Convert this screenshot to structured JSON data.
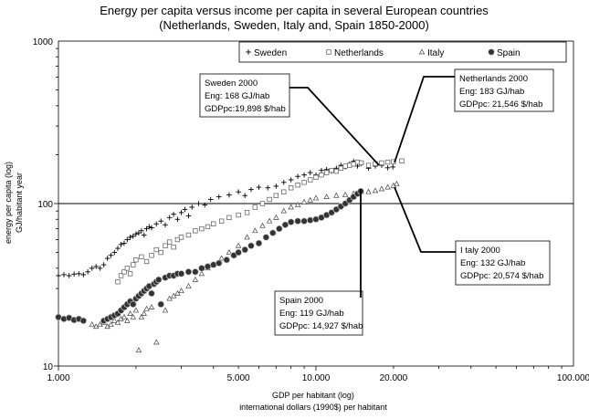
{
  "chart_data": {
    "type": "scatter",
    "title": "Energy per capita versus income per capita in several European countries",
    "subtitle": "(Netherlands, Sweden, Italy and, Spain 1850-2000)",
    "xlabel": "GDP per habitant (log)",
    "xlabel2": "international dollars (1990$) per habitant",
    "ylabel": "energy per capita (log)",
    "ylabel2": "GJ/habitant year",
    "x_scale": "log",
    "y_scale": "log",
    "xlim": [
      1000,
      100000
    ],
    "ylim": [
      10,
      1000
    ],
    "x_ticks": [
      {
        "value": 1000,
        "label": "1.000"
      },
      {
        "value": 5000,
        "label": "5.000"
      },
      {
        "value": 10000,
        "label": "10.000"
      },
      {
        "value": 20000,
        "label": "20.000"
      },
      {
        "value": 100000,
        "label": "100.000"
      }
    ],
    "y_ticks": [
      {
        "value": 10,
        "label": "10"
      },
      {
        "value": 100,
        "label": "100"
      },
      {
        "value": 1000,
        "label": "1000"
      }
    ],
    "reference_line_y": 100,
    "legend_position": "top-right",
    "series": [
      {
        "name": "Sweden",
        "marker": "plus",
        "color": "#000000",
        "points": [
          [
            1000,
            36
          ],
          [
            1050,
            36.5
          ],
          [
            1100,
            36
          ],
          [
            1150,
            36.8
          ],
          [
            1200,
            37
          ],
          [
            1250,
            36.5
          ],
          [
            1300,
            38
          ],
          [
            1350,
            40
          ],
          [
            1400,
            41
          ],
          [
            1450,
            40
          ],
          [
            1500,
            42
          ],
          [
            1550,
            46
          ],
          [
            1600,
            48
          ],
          [
            1650,
            50
          ],
          [
            1700,
            53
          ],
          [
            1750,
            56
          ],
          [
            1800,
            57
          ],
          [
            1850,
            60
          ],
          [
            1900,
            62
          ],
          [
            1950,
            63
          ],
          [
            2000,
            65
          ],
          [
            2050,
            66
          ],
          [
            2100,
            68
          ],
          [
            2150,
            64
          ],
          [
            2200,
            70
          ],
          [
            2250,
            72
          ],
          [
            2300,
            71
          ],
          [
            2400,
            75
          ],
          [
            2500,
            78
          ],
          [
            2600,
            74
          ],
          [
            2700,
            82
          ],
          [
            2800,
            86
          ],
          [
            2900,
            80
          ],
          [
            3000,
            88
          ],
          [
            3100,
            92
          ],
          [
            3200,
            84
          ],
          [
            3300,
            95
          ],
          [
            3500,
            100
          ],
          [
            3700,
            98
          ],
          [
            3900,
            106
          ],
          [
            4200,
            110
          ],
          [
            4600,
            113
          ],
          [
            5000,
            118
          ],
          [
            5300,
            112
          ],
          [
            5600,
            122
          ],
          [
            6000,
            126
          ],
          [
            6500,
            125
          ],
          [
            7000,
            128
          ],
          [
            7500,
            135
          ],
          [
            8000,
            140
          ],
          [
            8500,
            147
          ],
          [
            9000,
            150
          ],
          [
            9500,
            155
          ],
          [
            10000,
            150
          ],
          [
            10500,
            160
          ],
          [
            11000,
            162
          ],
          [
            11500,
            158
          ],
          [
            12000,
            165
          ],
          [
            12500,
            172
          ],
          [
            13000,
            168
          ],
          [
            13500,
            175
          ],
          [
            14000,
            182
          ],
          [
            14500,
            170
          ],
          [
            15000,
            176
          ],
          [
            16000,
            165
          ],
          [
            17000,
            170
          ],
          [
            18000,
            172
          ],
          [
            19000,
            166
          ],
          [
            19898,
            168
          ]
        ]
      },
      {
        "name": "Netherlands",
        "marker": "square",
        "color": "#000000",
        "points": [
          [
            1700,
            33
          ],
          [
            1750,
            36
          ],
          [
            1800,
            38
          ],
          [
            1850,
            40
          ],
          [
            1900,
            37
          ],
          [
            1950,
            42
          ],
          [
            2000,
            45
          ],
          [
            2100,
            47
          ],
          [
            2200,
            44
          ],
          [
            2300,
            48
          ],
          [
            2400,
            52
          ],
          [
            2500,
            50
          ],
          [
            2600,
            55
          ],
          [
            2700,
            58
          ],
          [
            2800,
            54
          ],
          [
            2900,
            60
          ],
          [
            3000,
            62
          ],
          [
            3200,
            64
          ],
          [
            3400,
            68
          ],
          [
            3600,
            70
          ],
          [
            3800,
            72
          ],
          [
            4000,
            75
          ],
          [
            4300,
            78
          ],
          [
            4600,
            82
          ],
          [
            5000,
            85
          ],
          [
            5400,
            88
          ],
          [
            5800,
            95
          ],
          [
            6200,
            100
          ],
          [
            6600,
            106
          ],
          [
            7000,
            112
          ],
          [
            7500,
            118
          ],
          [
            8000,
            125
          ],
          [
            8500,
            130
          ],
          [
            9000,
            135
          ],
          [
            9500,
            140
          ],
          [
            10000,
            145
          ],
          [
            10500,
            150
          ],
          [
            11000,
            155
          ],
          [
            11500,
            160
          ],
          [
            12000,
            158
          ],
          [
            12500,
            165
          ],
          [
            13000,
            170
          ],
          [
            13500,
            172
          ],
          [
            14000,
            175
          ],
          [
            14500,
            180
          ],
          [
            15000,
            178
          ],
          [
            16000,
            172
          ],
          [
            17000,
            176
          ],
          [
            18000,
            178
          ],
          [
            19000,
            180
          ],
          [
            20000,
            181
          ],
          [
            21546,
            183
          ]
        ]
      },
      {
        "name": "Italy",
        "marker": "triangle",
        "color": "#000000",
        "points": [
          [
            1350,
            18
          ],
          [
            1400,
            17.5
          ],
          [
            1450,
            18
          ],
          [
            1500,
            18.5
          ],
          [
            1550,
            17.5
          ],
          [
            1600,
            18
          ],
          [
            1650,
            19
          ],
          [
            1700,
            18.5
          ],
          [
            1750,
            19.5
          ],
          [
            1800,
            20
          ],
          [
            1850,
            19
          ],
          [
            1900,
            21
          ],
          [
            1950,
            20
          ],
          [
            2000,
            22
          ],
          [
            2050,
            12.5
          ],
          [
            2100,
            20
          ],
          [
            2150,
            21
          ],
          [
            2200,
            22.5
          ],
          [
            2300,
            23
          ],
          [
            2400,
            14
          ],
          [
            2500,
            24
          ],
          [
            2600,
            22
          ],
          [
            2700,
            26
          ],
          [
            2800,
            27
          ],
          [
            2900,
            28
          ],
          [
            3000,
            29
          ],
          [
            3200,
            31
          ],
          [
            3400,
            34
          ],
          [
            3600,
            37
          ],
          [
            3800,
            40
          ],
          [
            4000,
            42
          ],
          [
            4300,
            46
          ],
          [
            4600,
            50
          ],
          [
            5000,
            55
          ],
          [
            5400,
            62
          ],
          [
            5800,
            68
          ],
          [
            6200,
            73
          ],
          [
            6600,
            78
          ],
          [
            7000,
            82
          ],
          [
            7500,
            90
          ],
          [
            8000,
            95
          ],
          [
            8500,
            98
          ],
          [
            9000,
            102
          ],
          [
            9500,
            105
          ],
          [
            10000,
            108
          ],
          [
            11000,
            110
          ],
          [
            12000,
            112
          ],
          [
            13000,
            113
          ],
          [
            14000,
            115
          ],
          [
            15000,
            118
          ],
          [
            16000,
            118
          ],
          [
            17000,
            120
          ],
          [
            18000,
            123
          ],
          [
            19000,
            126
          ],
          [
            20000,
            129
          ],
          [
            20574,
            132
          ]
        ]
      },
      {
        "name": "Spain",
        "marker": "circle",
        "color": "#000000",
        "points": [
          [
            1000,
            20
          ],
          [
            1050,
            19.5
          ],
          [
            1100,
            19.8
          ],
          [
            1150,
            19.2
          ],
          [
            1200,
            19.5
          ],
          [
            1250,
            19
          ],
          [
            1500,
            19
          ],
          [
            1550,
            19.5
          ],
          [
            1600,
            20
          ],
          [
            1650,
            20.5
          ],
          [
            1700,
            21
          ],
          [
            1750,
            22
          ],
          [
            1800,
            23
          ],
          [
            1850,
            24
          ],
          [
            1900,
            25
          ],
          [
            1950,
            24
          ],
          [
            2000,
            26
          ],
          [
            2050,
            27
          ],
          [
            2100,
            28
          ],
          [
            2150,
            29
          ],
          [
            2200,
            30
          ],
          [
            2250,
            31
          ],
          [
            2300,
            28
          ],
          [
            2350,
            32
          ],
          [
            2400,
            33
          ],
          [
            2450,
            34
          ],
          [
            2500,
            24
          ],
          [
            2600,
            35
          ],
          [
            2700,
            36
          ],
          [
            2800,
            36
          ],
          [
            2900,
            37
          ],
          [
            3000,
            37
          ],
          [
            3200,
            38
          ],
          [
            3400,
            38
          ],
          [
            3600,
            40
          ],
          [
            3800,
            41
          ],
          [
            4000,
            42
          ],
          [
            4200,
            43
          ],
          [
            4500,
            45
          ],
          [
            4800,
            48
          ],
          [
            5000,
            50
          ],
          [
            5300,
            52
          ],
          [
            5600,
            55
          ],
          [
            6000,
            57
          ],
          [
            6400,
            62
          ],
          [
            6800,
            66
          ],
          [
            7200,
            70
          ],
          [
            7600,
            74
          ],
          [
            8000,
            77
          ],
          [
            8500,
            78
          ],
          [
            9000,
            78
          ],
          [
            9500,
            79
          ],
          [
            10000,
            80
          ],
          [
            10500,
            82
          ],
          [
            11000,
            85
          ],
          [
            11500,
            88
          ],
          [
            12000,
            92
          ],
          [
            12500,
            96
          ],
          [
            13000,
            100
          ],
          [
            13500,
            105
          ],
          [
            14000,
            110
          ],
          [
            14500,
            115
          ],
          [
            14927,
            119
          ]
        ]
      }
    ],
    "annotations": [
      {
        "lines": [
          "Sweden 2000",
          "Eng: 168 GJ/hab",
          "GDPpc:19,898 $/hab"
        ],
        "target": [
          19898,
          168
        ]
      },
      {
        "lines": [
          "Netherlands 2000",
          "Eng: 183 GJ/hab",
          "GDPpc:  21,546 $/hab"
        ],
        "target": [
          21546,
          183
        ]
      },
      {
        "lines": [
          "I  taly 2000",
          "Eng: 132 GJ/hab",
          "GDPpc: 20,574 $/hab"
        ],
        "target": [
          20574,
          132
        ]
      },
      {
        "lines": [
          "Spain 2000",
          "Eng: 119 GJ/hab",
          "GDPpc: 14,927 $/hab"
        ],
        "target": [
          14927,
          119
        ]
      }
    ]
  }
}
